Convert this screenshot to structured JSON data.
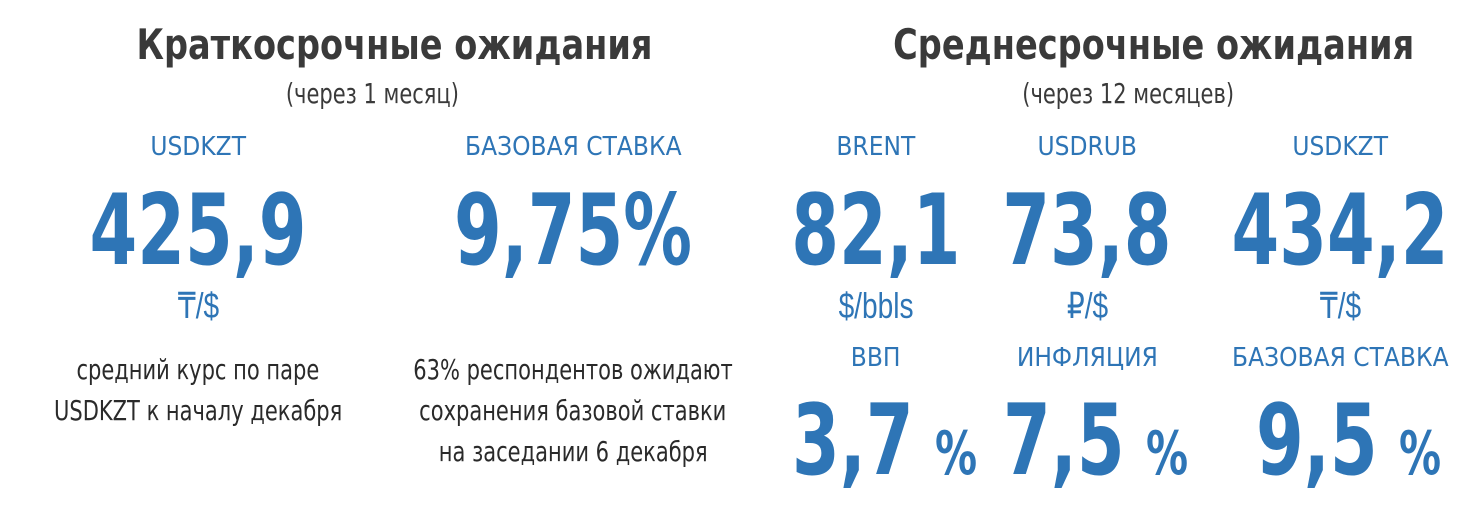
{
  "short_term": {
    "title": "Краткосрочные ожидания",
    "subtitle": "(через 1 месяц)",
    "items": [
      {
        "label": "USDKZT",
        "value": "425,9",
        "unit": "₸/$",
        "note": [
          "средний курс по паре",
          "USDKZT к началу декабря"
        ]
      },
      {
        "label": "БАЗОВАЯ СТАВКА",
        "value": "9,75%",
        "note": [
          "63% респондентов ожидают",
          "сохранения базовой ставки",
          "на заседании 6 декабря"
        ]
      }
    ]
  },
  "medium_term": {
    "title": "Среднесрочные ожидания",
    "subtitle": "(через 12 месяцев)",
    "items": [
      {
        "label": "BRENT",
        "value": "82,1",
        "unit": "$/bbls"
      },
      {
        "label": "USDRUB",
        "value": "73,8",
        "unit": "₽/$"
      },
      {
        "label": "USDKZT",
        "value": "434,2",
        "unit": "₸/$"
      }
    ],
    "rates": [
      {
        "label": "ВВП",
        "value": "3,7",
        "unit": "%"
      },
      {
        "label": "ИНФЛЯЦИЯ",
        "value": "7,5",
        "unit": "%"
      },
      {
        "label": "БАЗОВАЯ СТАВКА",
        "value": "9,5",
        "unit": "%"
      }
    ]
  }
}
